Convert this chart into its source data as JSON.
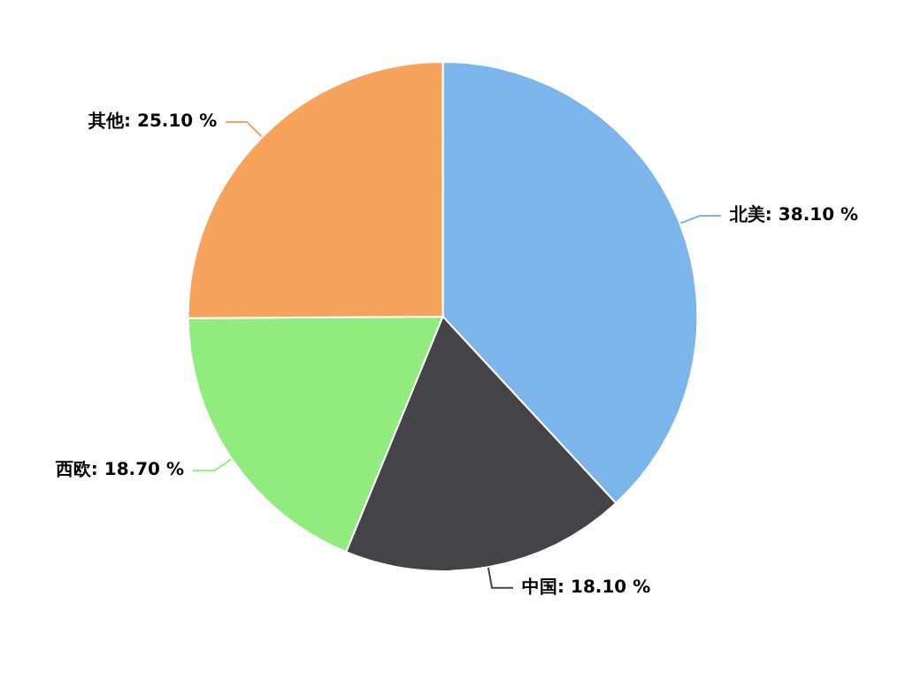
{
  "chart_data": {
    "type": "pie",
    "categories": [
      "北美",
      "中国",
      "西欧",
      "其他"
    ],
    "values": [
      38.1,
      18.1,
      18.7,
      25.1
    ],
    "colors": [
      "#7cb5ec",
      "#434348",
      "#90ed7d",
      "#f7a35c"
    ],
    "value_labels": [
      "38.10 %",
      "18.10 %",
      "18.70 %",
      "25.10 %"
    ],
    "legend": false
  }
}
